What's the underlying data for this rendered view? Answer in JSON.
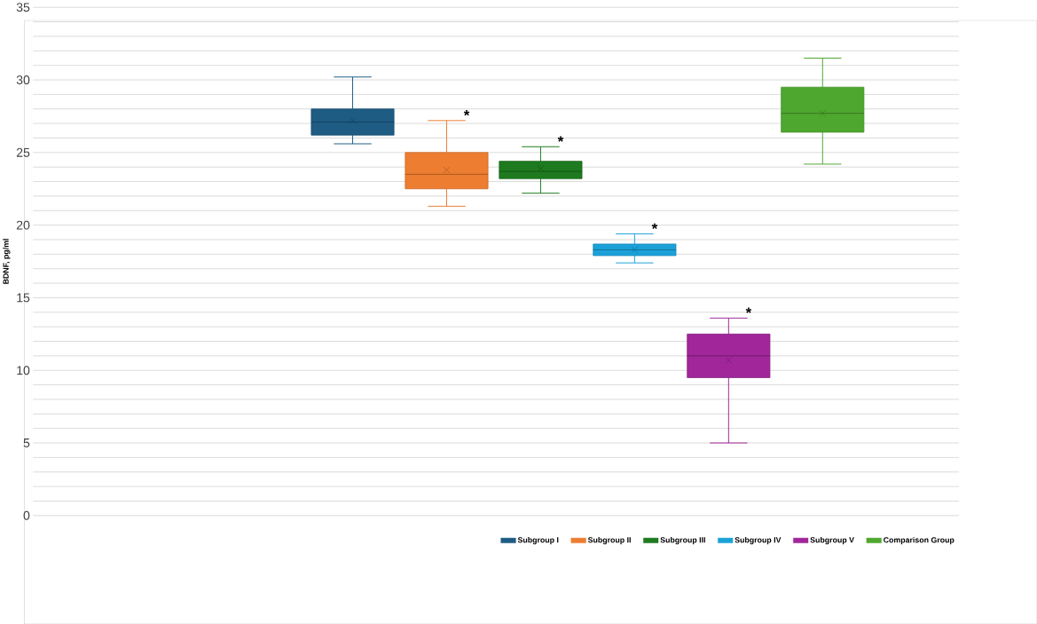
{
  "chart_data": {
    "type": "box",
    "ylabel": "BDNF, pg/ml",
    "categories": [
      null
    ],
    "ylim": [
      0,
      35
    ],
    "yticks": [
      0,
      5,
      10,
      15,
      20,
      25,
      30,
      35
    ],
    "grid": "y",
    "legend": "bottom",
    "annotations": [
      "*",
      "*",
      "*",
      "*"
    ],
    "series": [
      {
        "name": "Subgroup I",
        "color": "#1e5c84",
        "boxes": [
          {
            "low": 25.6,
            "q1": 26.2,
            "median": 27.1,
            "q3": 28.0,
            "high": 30.2,
            "mean": 27.2
          }
        ]
      },
      {
        "name": "Subgroup II",
        "color": "#ed7d31",
        "boxes": [
          {
            "low": 21.3,
            "q1": 22.5,
            "median": 23.5,
            "q3": 25.0,
            "high": 27.2,
            "mean": 23.8
          }
        ]
      },
      {
        "name": "Subgroup III",
        "color": "#1e7a1e",
        "boxes": [
          {
            "low": 22.2,
            "q1": 23.2,
            "median": 23.7,
            "q3": 24.4,
            "high": 25.4,
            "mean": 23.9
          }
        ]
      },
      {
        "name": "Subgroup IV",
        "color": "#1ba1d8",
        "boxes": [
          {
            "low": 17.4,
            "q1": 17.9,
            "median": 18.3,
            "q3": 18.7,
            "high": 19.4,
            "mean": 18.3
          }
        ]
      },
      {
        "name": "Subgroup V",
        "color": "#a0269a",
        "boxes": [
          {
            "low": 5.0,
            "q1": 9.5,
            "median": 11.0,
            "q3": 12.5,
            "high": 13.6,
            "mean": 10.7
          }
        ]
      },
      {
        "name": "Comparison Group",
        "color": "#4ea72e",
        "boxes": [
          {
            "low": 24.2,
            "q1": 26.4,
            "median": 27.7,
            "q3": 29.5,
            "high": 31.5,
            "mean": 27.7
          }
        ]
      }
    ]
  }
}
